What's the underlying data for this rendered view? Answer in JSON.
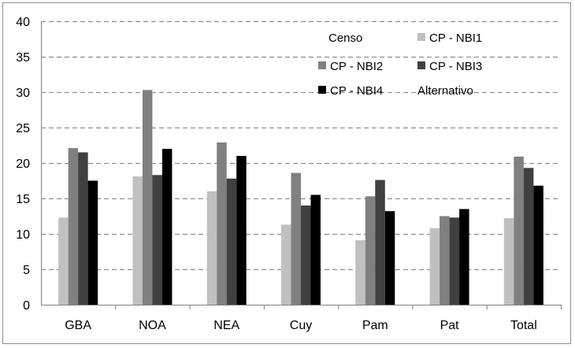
{
  "chart_data": {
    "type": "bar",
    "categories": [
      "GBA",
      "NOA",
      "NEA",
      "Cuy",
      "Pam",
      "Pat",
      "Total"
    ],
    "series": [
      {
        "name": "Censo",
        "values": [
          null,
          null,
          null,
          null,
          null,
          null,
          null
        ],
        "color": "#ffffff"
      },
      {
        "name": "CP - NBI1",
        "values": [
          12.3,
          18.1,
          16.0,
          11.3,
          9.1,
          10.8,
          12.2
        ],
        "color": "#c0c0c0"
      },
      {
        "name": "CP - NBI2",
        "values": [
          22.1,
          30.3,
          22.9,
          18.6,
          15.3,
          12.5,
          20.9
        ],
        "color": "#808080"
      },
      {
        "name": "CP - NBI3",
        "values": [
          21.5,
          18.3,
          17.8,
          14.0,
          17.6,
          12.3,
          19.3
        ],
        "color": "#404040"
      },
      {
        "name": "CP - NBI4",
        "values": [
          17.5,
          22.0,
          21.0,
          15.5,
          13.2,
          13.5,
          16.8
        ],
        "color": "#000000"
      },
      {
        "name": "Alternativo",
        "values": [
          null,
          null,
          null,
          null,
          null,
          null,
          null
        ],
        "color": "#ffffff"
      }
    ],
    "ylim": [
      0,
      40
    ],
    "yticks": [
      0,
      5,
      10,
      15,
      20,
      25,
      30,
      35,
      40
    ],
    "grid": "horizontal dashed",
    "legend_position": "top-right",
    "title": "",
    "xlabel": "",
    "ylabel": ""
  }
}
